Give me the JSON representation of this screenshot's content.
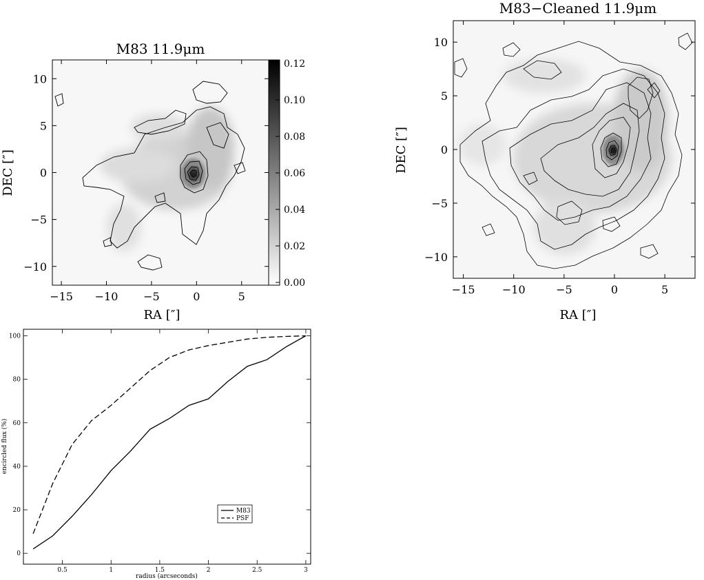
{
  "chart_data": [
    {
      "type": "heatmap",
      "title": "M83 11.9μm",
      "xlabel": "RA [″]",
      "ylabel": "DEC [″]",
      "xlim": [
        -16,
        8
      ],
      "ylim": [
        -12,
        12
      ],
      "xticks": [
        -15,
        -10,
        -5,
        0,
        5
      ],
      "yticks": [
        -10,
        -5,
        0,
        5,
        10
      ],
      "colorbar": {
        "min": 0.0,
        "max": 0.12,
        "ticks": [
          "0.12",
          "0.10",
          "0.08",
          "0.06",
          "0.04",
          "0.02",
          "0.00"
        ],
        "colors": [
          "#ffffff",
          "#000000"
        ]
      },
      "contours": true
    },
    {
      "type": "heatmap",
      "title": "M83−Cleaned 11.9μm",
      "xlabel": "RA [″]",
      "ylabel": "DEC [″]",
      "xlim": [
        -16,
        8
      ],
      "ylim": [
        -12,
        12
      ],
      "xticks": [
        -15,
        -10,
        -5,
        0,
        5
      ],
      "yticks": [
        -10,
        -5,
        0,
        5,
        10
      ],
      "contours": true
    },
    {
      "type": "line",
      "xlabel": "radius (arcseconds)",
      "ylabel": "encircled flux (%)",
      "xlim": [
        0.1,
        3.05
      ],
      "ylim": [
        -5,
        103
      ],
      "xticks": [
        "0.5",
        "1",
        "1.5",
        "2",
        "2.5",
        "3"
      ],
      "yticks": [
        "0",
        "20",
        "40",
        "60",
        "80",
        "100"
      ],
      "legend": "center-right",
      "series": [
        {
          "name": "M83",
          "style": "solid",
          "x": [
            0.2,
            0.4,
            0.6,
            0.8,
            1.0,
            1.2,
            1.4,
            1.6,
            1.8,
            2.0,
            2.2,
            2.4,
            2.6,
            2.8,
            3.0
          ],
          "y": [
            2,
            8,
            17,
            27,
            38,
            47,
            57,
            62,
            68,
            71,
            79,
            86,
            89,
            95,
            100
          ]
        },
        {
          "name": "PSF",
          "style": "dashed",
          "x": [
            0.2,
            0.4,
            0.6,
            0.8,
            1.0,
            1.2,
            1.4,
            1.6,
            1.8,
            2.0,
            2.2,
            2.4,
            2.6,
            2.8,
            3.0
          ],
          "y": [
            9,
            32,
            50,
            61,
            68,
            76,
            84,
            90,
            93.5,
            95.5,
            97,
            98.5,
            99.3,
            99.7,
            100
          ]
        }
      ]
    }
  ]
}
